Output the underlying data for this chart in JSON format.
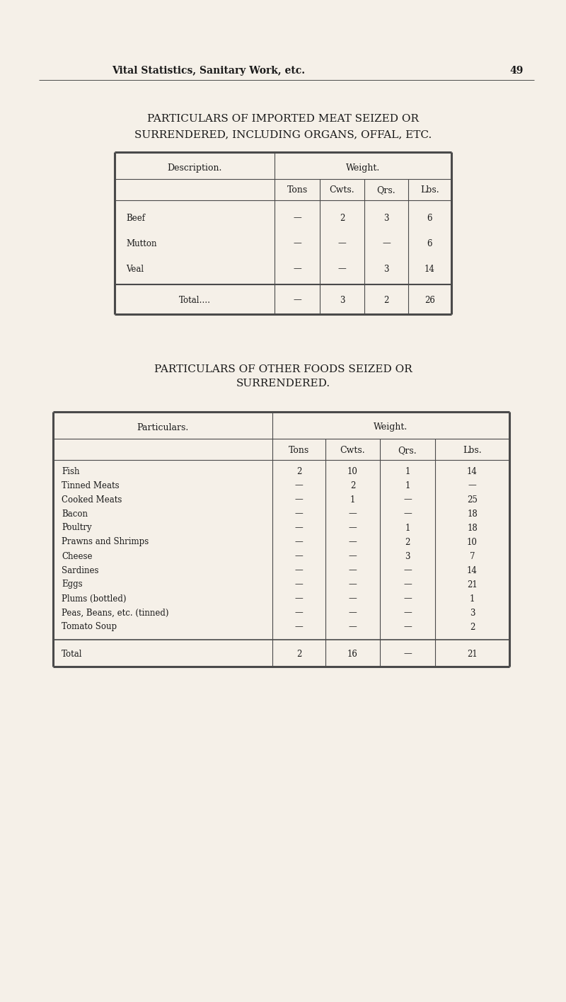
{
  "bg_color": "#f5f0e8",
  "page_header": "Vital Statistics, Sanitary Work, etc.",
  "page_number": "49",
  "title1_line1": "PARTICULARS OF IMPORTED MEAT SEIZED OR",
  "title1_line2": "SURRENDERED, INCLUDING ORGANS, OFFAL, ETC.",
  "table1_col_headers_left": "Description.",
  "table1_col_headers_right": "Weight.",
  "table1_sub_headers": [
    "Tons",
    "Cwts.",
    "Qrs.",
    "Lbs."
  ],
  "table1_rows": [
    [
      "Beef",
      "—",
      "2",
      "3",
      "6"
    ],
    [
      "Mutton",
      "—",
      "—",
      "—",
      "6"
    ],
    [
      "Veal",
      "—",
      "—",
      "3",
      "14"
    ]
  ],
  "table1_total": [
    "Total….",
    "—",
    "3",
    "2",
    "26"
  ],
  "title2_line1": "PARTICULARS OF OTHER FOODS SEIZED OR",
  "title2_line2": "SURRENDERED.",
  "table2_col_headers_left": "Particulars.",
  "table2_col_headers_right": "Weight.",
  "table2_sub_headers": [
    "Tons",
    "Cwts.",
    "Qrs.",
    "Lbs."
  ],
  "table2_rows": [
    [
      "Fish",
      "2",
      "10",
      "1",
      "14"
    ],
    [
      "Tinned Meats",
      "—",
      "2",
      "1",
      "—"
    ],
    [
      "Cooked Meats",
      "—",
      "1",
      "—",
      "25"
    ],
    [
      "Bacon",
      "—",
      "—",
      "—",
      "18"
    ],
    [
      "Poultry",
      "—",
      "—",
      "1",
      "18"
    ],
    [
      "Prawns and Shrimps",
      "—",
      "—",
      "2",
      "10"
    ],
    [
      "Cheese",
      "—",
      "—",
      "3",
      "7"
    ],
    [
      "Sardines",
      "—",
      "—",
      "—",
      "14"
    ],
    [
      "Eggs",
      "—",
      "—",
      "—",
      "21"
    ],
    [
      "Plums (bottled)",
      "—",
      "—",
      "—",
      "1"
    ],
    [
      "Peas, Beans, etc. (tinned)",
      "—",
      "—",
      "—",
      "3"
    ],
    [
      "Tomato Soup",
      "—",
      "—",
      "—",
      "2"
    ]
  ],
  "table2_total": [
    "Total",
    "2",
    "16",
    "—",
    "21"
  ],
  "text_color": "#1a1a1a",
  "line_color": "#4a4a4a",
  "title_fontsize": 11.0,
  "header_fontsize": 9.0,
  "body_fontsize": 8.5,
  "page_header_fontsize": 10.0
}
